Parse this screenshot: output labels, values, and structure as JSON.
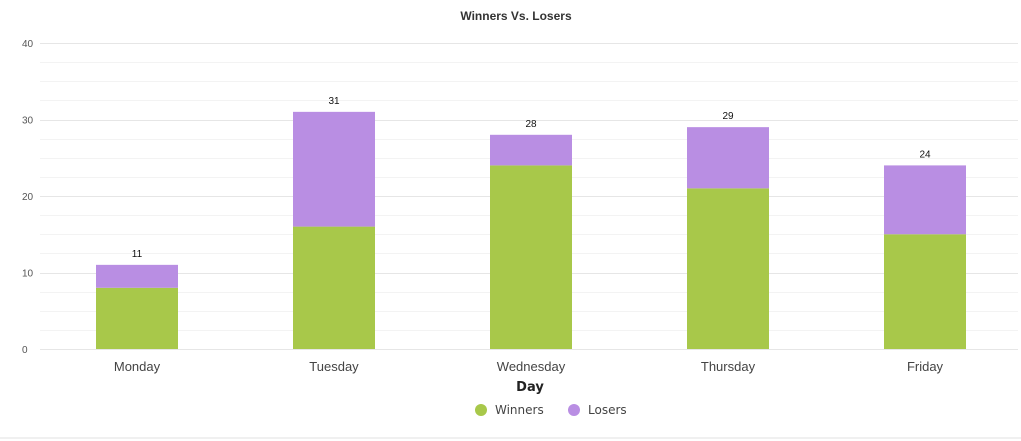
{
  "chart_data": {
    "type": "bar",
    "stacked": true,
    "title": "Winners Vs. Losers",
    "xlabel": "Day",
    "ylabel": "",
    "categories": [
      "Monday",
      "Tuesday",
      "Wednesday",
      "Thursday",
      "Friday"
    ],
    "series": [
      {
        "name": "Winners",
        "color": "#a8c84a",
        "values": [
          8,
          16,
          24,
          21,
          15
        ]
      },
      {
        "name": "Losers",
        "color": "#b98ee3",
        "values": [
          3,
          15,
          4,
          8,
          9
        ]
      }
    ],
    "totals": [
      "11",
      "31",
      "28",
      "29",
      "24"
    ],
    "ylim": [
      0,
      40
    ],
    "yticks": [
      "0",
      "10",
      "20",
      "30",
      "40"
    ],
    "grid": true,
    "legend_position": "bottom-center"
  }
}
